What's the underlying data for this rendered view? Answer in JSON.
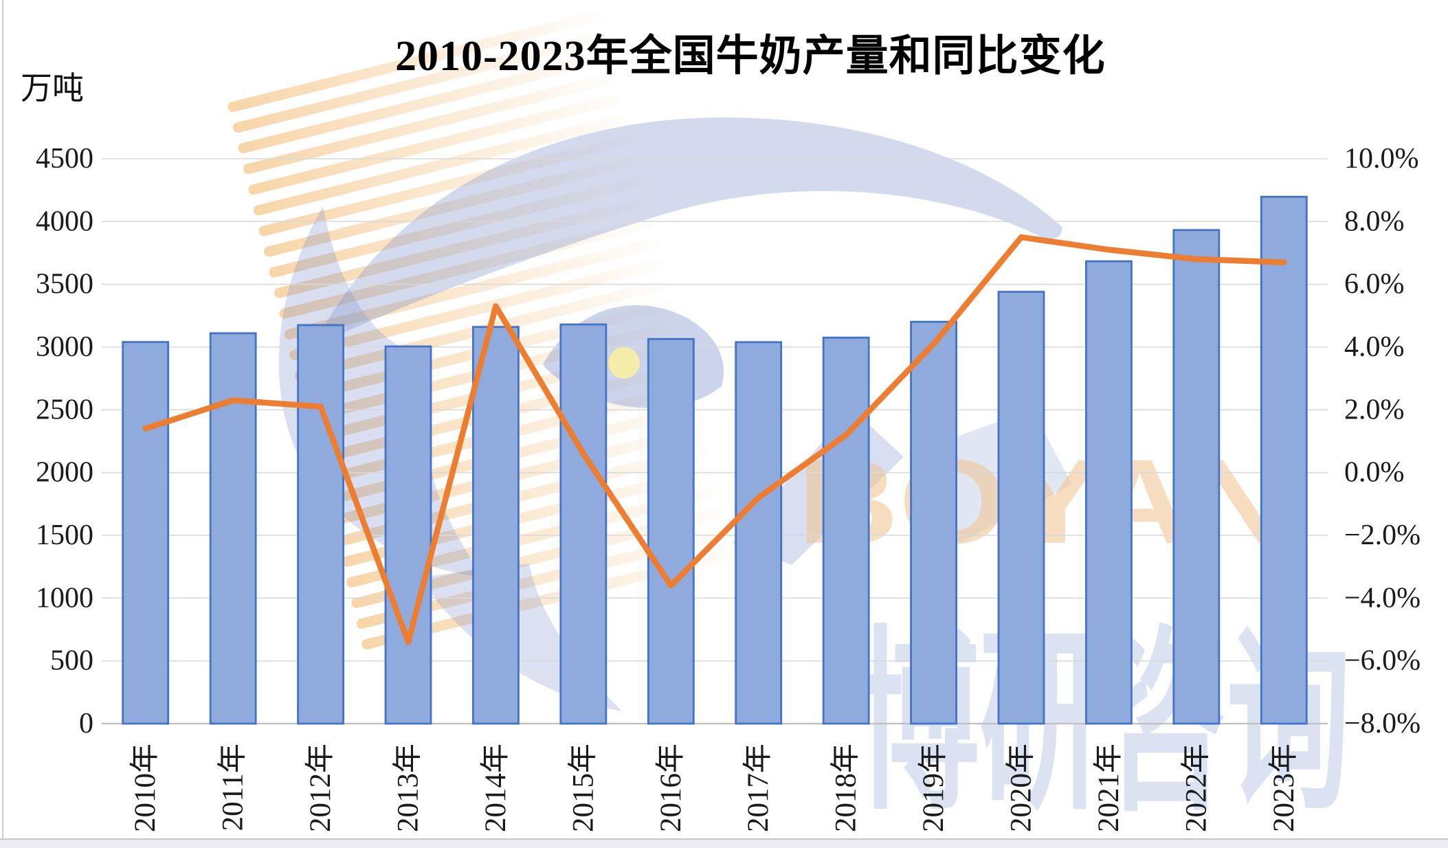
{
  "title": "2010-2023年全国牛奶产量和同比变化",
  "unit_label": "万吨",
  "watermark": {
    "latin": "BOYAN",
    "cjk": "博研咨询"
  },
  "chart_data": {
    "type": "combo",
    "title": "2010-2023年全国牛奶产量和同比变化",
    "categories": [
      "2010年",
      "2011年",
      "2012年",
      "2013年",
      "2014年",
      "2015年",
      "2016年",
      "2017年",
      "2018年",
      "2019年",
      "2020年",
      "2021年",
      "2022年",
      "2023年"
    ],
    "series": [
      {
        "name": "牛奶产量",
        "type": "bar",
        "unit": "万吨",
        "axis": "left",
        "values": [
          3040,
          3110,
          3175,
          3005,
          3160,
          3180,
          3064,
          3039,
          3075,
          3201,
          3440,
          3683,
          3932,
          4197
        ],
        "color": "#8FAADC",
        "border_color": "#4472C4"
      },
      {
        "name": "同比变化",
        "type": "line",
        "unit": "%",
        "axis": "right",
        "values": [
          1.4,
          2.3,
          2.1,
          -5.4,
          5.3,
          0.6,
          -3.6,
          -0.8,
          1.2,
          4.1,
          7.5,
          7.1,
          6.8,
          6.7
        ],
        "color": "#ED7D31"
      }
    ],
    "left_axis": {
      "label": "万吨",
      "min": 0,
      "max": 4500,
      "step": 500,
      "ticks_top_down": [
        "4500",
        "4000",
        "3500",
        "3000",
        "2500",
        "2000",
        "1500",
        "1000",
        "500",
        "0"
      ]
    },
    "right_axis": {
      "min": -8.0,
      "max": 10.0,
      "step": 2.0,
      "ticks_top_down": [
        "10.0%",
        "8.0%",
        "6.0%",
        "4.0%",
        "2.0%",
        "0.0%",
        "−2.0%",
        "−4.0%",
        "−6.0%",
        "−8.0%"
      ]
    },
    "grid": true,
    "grid_color": "#D9D9D9",
    "axis_line_color": "#BFBFBF",
    "legend": "none"
  }
}
